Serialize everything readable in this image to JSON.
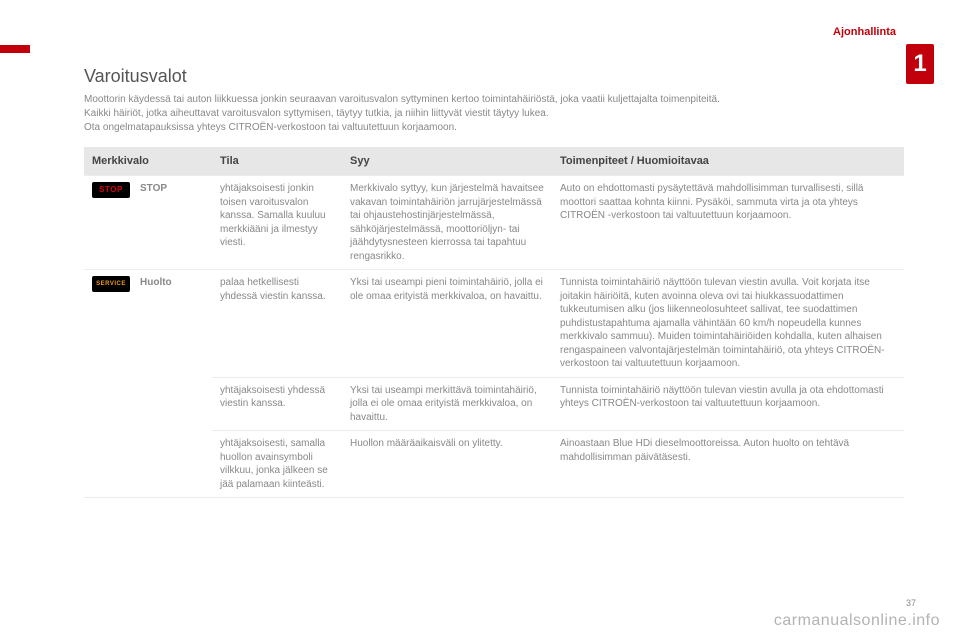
{
  "section_label": "Ajonhallinta",
  "chapter_number": "1",
  "page_number": "37",
  "watermark": "carmanualsonline.info",
  "title": "Varoitusvalot",
  "intro_lines": [
    "Moottorin käydessä tai auton liikkuessa jonkin seuraavan varoitusvalon syttyminen kertoo toimintahäiriöstä, joka vaatii kuljettajalta toimenpiteitä.",
    "Kaikki häiriöt, jotka aiheuttavat varoitusvalon syttymisen, täytyy tutkia, ja niihin liittyvät viestit täytyy lukea.",
    "Ota ongelmatapauksissa yhteys CITROËN-verkostoon tai valtuutettuun korjaamoon."
  ],
  "columns": [
    "Merkkivalo",
    "Tila",
    "Syy",
    "Toimenpiteet / Huomioitavaa"
  ],
  "rows": [
    {
      "indicator": {
        "text": "STOP",
        "css": "ind-stop"
      },
      "name": "STOP",
      "tila": "yhtäjaksoisesti jonkin toisen varoitusvalon kanssa. Samalla kuuluu merkkiääni ja ilmestyy viesti.",
      "syy": "Merkkivalo syttyy, kun järjestelmä havaitsee vakavan toimintahäiriön jarrujärjestelmässä tai ohjaustehostinjärjestelmässä, sähköjärjestelmässä, moottoriöljyn- tai jäähdytysnesteen kierrossa tai tapahtuu rengasrikko.",
      "toim": "Auto on ehdottomasti pysäytettävä mahdollisimman turvallisesti, sillä moottori saattaa kohnta kiinni.\nPysäköi, sammuta virta ja ota yhteys CITROËN -verkostoon tai valtuutettuun korjaamoon."
    },
    {
      "indicator": {
        "text": "SERVICE",
        "css": "ind-service"
      },
      "name": "Huolto",
      "tila": "palaa hetkellisesti yhdessä viestin kanssa.",
      "syy": "Yksi tai useampi pieni toimintahäiriö, jolla ei ole omaa erityistä merkkivaloa, on havaittu.",
      "toim": "Tunnista toimintahäiriö näyttöön tulevan viestin avulla.\nVoit korjata itse joitakin häiriöitä, kuten avoinna oleva ovi tai hiukkassuodattimen tukkeutumisen alku (jos liikenneolosuhteet sallivat, tee suodattimen puhdistustapahtuma ajamalla vähintään 60 km/h nopeudella kunnes merkkivalo sammuu).\nMuiden toimintahäiriöiden kohdalla, kuten alhaisen rengaspaineen valvontajärjestelmän toimintahäiriö, ota yhteys CITROËN-verkostoon tai valtuutettuun korjaamoon."
    },
    {
      "indicator": null,
      "name": "",
      "tila": "yhtäjaksoisesti yhdessä viestin kanssa.",
      "syy": "Yksi tai useampi merkittävä toimintahäiriö, jolla ei ole omaa erityistä merkkivaloa, on havaittu.",
      "toim": "Tunnista toimintahäiriö näyttöön tulevan viestin avulla ja ota ehdottomasti yhteys CITROËN-verkostoon tai valtuutettuun korjaamoon."
    },
    {
      "indicator": null,
      "name": "",
      "tila": "yhtäjaksoisesti, samalla huollon avainsymboli vilkkuu, jonka jälkeen se jää palamaan kiinteästi.",
      "syy": "Huollon määräaikaisväli on ylitetty.",
      "toim": "Ainoastaan Blue HDi dieselmoottoreissa.\nAuton huolto on tehtävä mahdollisimman päivätäsesti."
    }
  ]
}
